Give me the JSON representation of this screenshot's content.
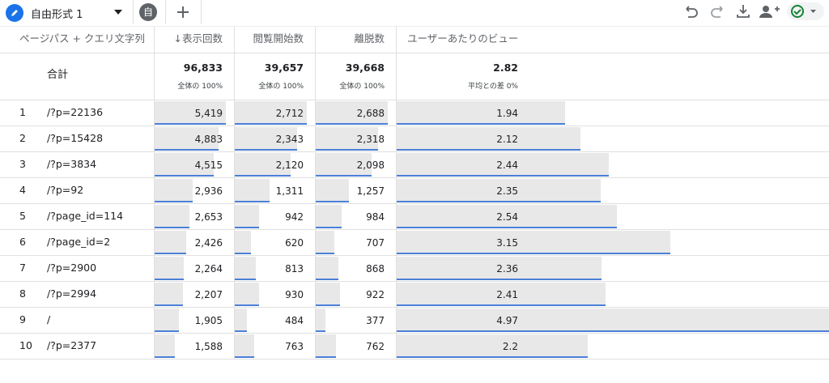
{
  "tabs": {
    "active": "自由形式 1",
    "collapsed": "自"
  },
  "table": {
    "headers": [
      "ページパス + クエリ文字列",
      "↓表示回数",
      "閲覧開始数",
      "離脱数",
      "ユーザーあたりのビュー"
    ],
    "totals": {
      "label": "合計",
      "values": [
        "96,833",
        "39,657",
        "39,668",
        "2.82"
      ],
      "notes": [
        "全体の 100%",
        "全体の 100%",
        "全体の 100%",
        "平均との差 0%"
      ]
    },
    "rows": [
      [
        "1",
        "/?p=22136",
        "5,419",
        "2,712",
        "2,688",
        "1.94"
      ],
      [
        "2",
        "/?p=15428",
        "4,883",
        "2,343",
        "2,318",
        "2.12"
      ],
      [
        "3",
        "/?p=3834",
        "4,515",
        "2,120",
        "2,098",
        "2.44"
      ],
      [
        "4",
        "/?p=92",
        "2,936",
        "1,311",
        "1,257",
        "2.35"
      ],
      [
        "5",
        "/?page_id=114",
        "2,653",
        "942",
        "984",
        "2.54"
      ],
      [
        "6",
        "/?page_id=2",
        "2,426",
        "620",
        "707",
        "3.15"
      ],
      [
        "7",
        "/?p=2900",
        "2,264",
        "813",
        "868",
        "2.36"
      ],
      [
        "8",
        "/?p=2994",
        "2,207",
        "930",
        "922",
        "2.41"
      ],
      [
        "9",
        "/",
        "1,905",
        "484",
        "377",
        "4.97"
      ],
      [
        "10",
        "/?p=2377",
        "1,588",
        "763",
        "762",
        "2.2"
      ]
    ]
  }
}
